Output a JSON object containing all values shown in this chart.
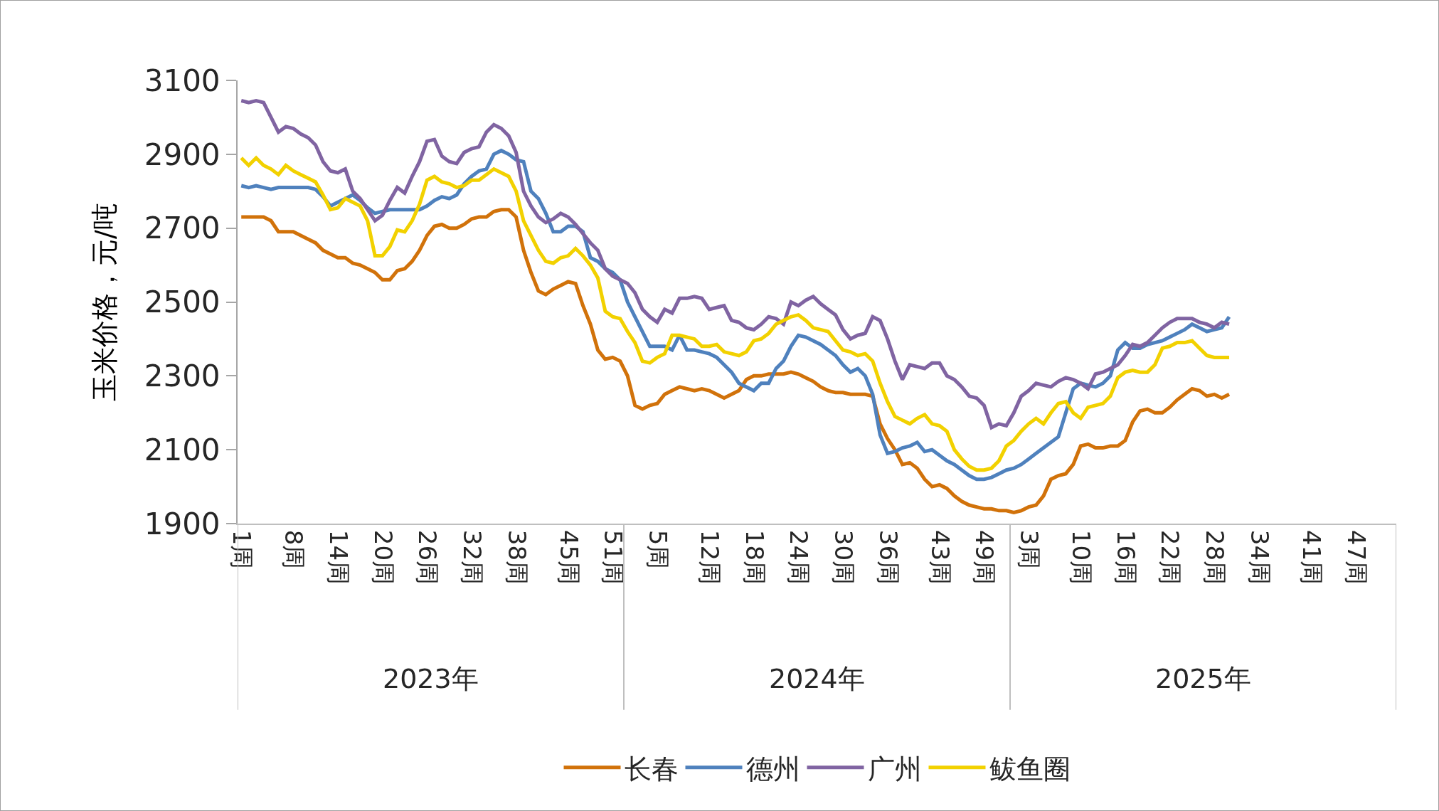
{
  "chart_data": {
    "type": "line",
    "ylabel": "玉米价格，元/吨",
    "categories": [
      "1周",
      null,
      null,
      null,
      null,
      null,
      null,
      "8周",
      null,
      null,
      null,
      null,
      null,
      "14周",
      null,
      null,
      null,
      null,
      null,
      "20周",
      null,
      null,
      null,
      null,
      null,
      "26周",
      null,
      null,
      null,
      null,
      null,
      "32周",
      null,
      null,
      null,
      null,
      null,
      "38周",
      null,
      null,
      null,
      null,
      null,
      null,
      "45周",
      null,
      null,
      null,
      null,
      null,
      "51周",
      null,
      null,
      null,
      null,
      null,
      "5周",
      null,
      null,
      null,
      null,
      null,
      null,
      "12周",
      null,
      null,
      null,
      null,
      null,
      "18周",
      null,
      null,
      null,
      null,
      null,
      "24周",
      null,
      null,
      null,
      null,
      null,
      "30周",
      null,
      null,
      null,
      null,
      null,
      "36周",
      null,
      null,
      null,
      null,
      null,
      null,
      "43周",
      null,
      null,
      null,
      null,
      null,
      "49周",
      null,
      null,
      null,
      null,
      null,
      "3周",
      null,
      null,
      null,
      null,
      null,
      null,
      "10周",
      null,
      null,
      null,
      null,
      null,
      "16周",
      null,
      null,
      null,
      null,
      null,
      "22周",
      null,
      null,
      null,
      null,
      null,
      "28周",
      null,
      null,
      null,
      null,
      null,
      "34周",
      null,
      null,
      null,
      null,
      null,
      null,
      "41周",
      null,
      null,
      null,
      null,
      null,
      "47周",
      null,
      null,
      null,
      null,
      null
    ],
    "series": [
      {
        "name": "长春",
        "color": "#d1720a",
        "values": [
          2730,
          2730,
          2730,
          2730,
          2720,
          2690,
          2690,
          2690,
          2680,
          2670,
          2660,
          2640,
          2630,
          2620,
          2620,
          2605,
          2600,
          2590,
          2580,
          2560,
          2560,
          2585,
          2590,
          2610,
          2640,
          2680,
          2705,
          2710,
          2700,
          2700,
          2710,
          2725,
          2730,
          2730,
          2745,
          2750,
          2750,
          2730,
          2640,
          2580,
          2530,
          2520,
          2535,
          2545,
          2555,
          2550,
          2490,
          2440,
          2370,
          2345,
          2350,
          2340,
          2300,
          2220,
          2210,
          2220,
          2225,
          2250,
          2260,
          2270,
          2265,
          2260,
          2265,
          2260,
          2250,
          2240,
          2250,
          2260,
          2290,
          2300,
          2300,
          2305,
          2305,
          2305,
          2310,
          2305,
          2295,
          2285,
          2270,
          2260,
          2255,
          2255,
          2250,
          2250,
          2250,
          2245,
          2170,
          2130,
          2100,
          2060,
          2065,
          2050,
          2020,
          2000,
          2005,
          1995,
          1975,
          1960,
          1950,
          1945,
          1940,
          1940,
          1935,
          1935,
          1930,
          1935,
          1945,
          1950,
          1975,
          2020,
          2030,
          2035,
          2060,
          2110,
          2115,
          2105,
          2105,
          2110,
          2110,
          2125,
          2175,
          2205,
          2210,
          2200,
          2200,
          2215,
          2235,
          2250,
          2265,
          2260,
          2245,
          2250,
          2240,
          2250,
          null,
          null,
          null,
          null,
          null,
          null,
          null,
          null,
          null,
          null,
          null,
          null,
          null,
          null,
          null,
          null,
          null,
          null,
          null,
          null,
          null,
          null
        ]
      },
      {
        "name": "德州",
        "color": "#4f81bd",
        "values": [
          2815,
          2810,
          2815,
          2810,
          2805,
          2810,
          2810,
          2810,
          2810,
          2810,
          2805,
          2785,
          2760,
          2770,
          2780,
          2790,
          2775,
          2755,
          2740,
          2745,
          2750,
          2750,
          2750,
          2750,
          2750,
          2760,
          2775,
          2785,
          2780,
          2790,
          2820,
          2840,
          2855,
          2860,
          2900,
          2910,
          2900,
          2885,
          2880,
          2800,
          2780,
          2740,
          2690,
          2690,
          2705,
          2705,
          2690,
          2620,
          2610,
          2590,
          2580,
          2560,
          2500,
          2460,
          2420,
          2380,
          2380,
          2380,
          2370,
          2410,
          2370,
          2370,
          2365,
          2360,
          2350,
          2330,
          2310,
          2280,
          2270,
          2260,
          2280,
          2280,
          2320,
          2340,
          2380,
          2410,
          2405,
          2395,
          2385,
          2370,
          2355,
          2330,
          2310,
          2320,
          2300,
          2250,
          2140,
          2090,
          2095,
          2105,
          2110,
          2120,
          2095,
          2100,
          2085,
          2070,
          2060,
          2045,
          2030,
          2020,
          2020,
          2025,
          2035,
          2045,
          2050,
          2060,
          2075,
          2090,
          2105,
          2120,
          2135,
          2200,
          2265,
          2280,
          2275,
          2270,
          2280,
          2300,
          2370,
          2390,
          2375,
          2375,
          2385,
          2390,
          2395,
          2405,
          2415,
          2425,
          2440,
          2430,
          2420,
          2425,
          2430,
          2460,
          null,
          null,
          null,
          null,
          null,
          null,
          null,
          null,
          null,
          null,
          null,
          null,
          null,
          null,
          null,
          null,
          null,
          null,
          null,
          null,
          null,
          null
        ]
      },
      {
        "name": "广州",
        "color": "#8064a2",
        "values": [
          3045,
          3040,
          3045,
          3040,
          3000,
          2960,
          2975,
          2970,
          2955,
          2945,
          2925,
          2880,
          2855,
          2850,
          2860,
          2800,
          2780,
          2750,
          2720,
          2735,
          2775,
          2810,
          2795,
          2840,
          2880,
          2935,
          2940,
          2895,
          2880,
          2875,
          2905,
          2915,
          2920,
          2960,
          2980,
          2970,
          2950,
          2905,
          2800,
          2760,
          2730,
          2715,
          2725,
          2740,
          2730,
          2710,
          2685,
          2660,
          2640,
          2590,
          2570,
          2560,
          2550,
          2525,
          2480,
          2460,
          2445,
          2480,
          2470,
          2510,
          2510,
          2515,
          2510,
          2480,
          2485,
          2490,
          2450,
          2445,
          2430,
          2425,
          2440,
          2460,
          2455,
          2440,
          2500,
          2490,
          2505,
          2515,
          2495,
          2480,
          2465,
          2425,
          2400,
          2410,
          2415,
          2460,
          2450,
          2400,
          2340,
          2290,
          2330,
          2325,
          2320,
          2335,
          2335,
          2300,
          2290,
          2270,
          2245,
          2240,
          2220,
          2160,
          2170,
          2165,
          2200,
          2245,
          2260,
          2280,
          2275,
          2270,
          2285,
          2295,
          2290,
          2280,
          2265,
          2305,
          2310,
          2320,
          2330,
          2355,
          2385,
          2380,
          2390,
          2410,
          2430,
          2445,
          2455,
          2455,
          2455,
          2445,
          2440,
          2430,
          2445,
          2440,
          null,
          null,
          null,
          null,
          null,
          null,
          null,
          null,
          null,
          null,
          null,
          null,
          null,
          null,
          null,
          null,
          null,
          null,
          null,
          null,
          null,
          null
        ]
      },
      {
        "name": "鲅鱼圈",
        "color": "#f2d100",
        "values": [
          2890,
          2870,
          2890,
          2870,
          2860,
          2845,
          2870,
          2855,
          2845,
          2835,
          2825,
          2790,
          2750,
          2755,
          2780,
          2770,
          2760,
          2720,
          2625,
          2625,
          2650,
          2695,
          2690,
          2720,
          2765,
          2830,
          2840,
          2825,
          2820,
          2810,
          2815,
          2830,
          2830,
          2845,
          2860,
          2850,
          2840,
          2800,
          2720,
          2680,
          2640,
          2610,
          2605,
          2620,
          2625,
          2645,
          2625,
          2600,
          2565,
          2475,
          2460,
          2455,
          2420,
          2390,
          2340,
          2335,
          2350,
          2360,
          2410,
          2410,
          2405,
          2400,
          2380,
          2380,
          2385,
          2365,
          2360,
          2355,
          2365,
          2395,
          2400,
          2415,
          2440,
          2450,
          2460,
          2465,
          2450,
          2430,
          2425,
          2420,
          2395,
          2370,
          2365,
          2355,
          2360,
          2340,
          2280,
          2230,
          2190,
          2180,
          2170,
          2185,
          2195,
          2170,
          2165,
          2150,
          2100,
          2075,
          2055,
          2045,
          2045,
          2050,
          2070,
          2110,
          2125,
          2150,
          2170,
          2185,
          2170,
          2200,
          2225,
          2230,
          2200,
          2185,
          2215,
          2220,
          2225,
          2245,
          2295,
          2310,
          2315,
          2310,
          2310,
          2330,
          2375,
          2380,
          2390,
          2390,
          2395,
          2375,
          2355,
          2350,
          2350,
          2350,
          null,
          null,
          null,
          null,
          null,
          null,
          null,
          null,
          null,
          null,
          null,
          null,
          null,
          null,
          null,
          null,
          null,
          null,
          null,
          null,
          null,
          null
        ]
      }
    ],
    "ylim": [
      1900,
      3100
    ],
    "yticks": [
      1900,
      2100,
      2300,
      2500,
      2700,
      2900,
      3100
    ],
    "annotations": [
      "2023年",
      "2024年",
      "2025年"
    ],
    "grid": false,
    "legend": "bottom",
    "marker": "none",
    "line_style": "solid"
  }
}
